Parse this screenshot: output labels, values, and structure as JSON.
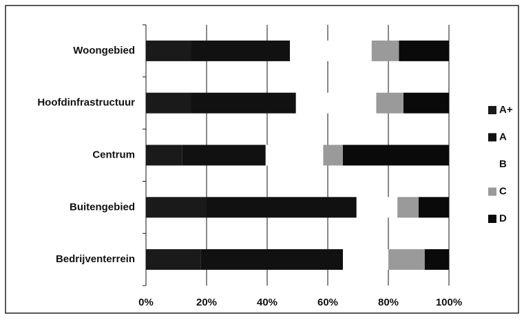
{
  "chart_data": {
    "type": "bar",
    "orientation": "horizontal",
    "stacked": true,
    "categories": [
      "Woongebied",
      "Hoofdinfrastructuur",
      "Centrum",
      "Buitengebied",
      "Bedrijventerrein"
    ],
    "series": [
      {
        "name": "A+",
        "color": "#1a1a1a",
        "values": [
          15,
          15,
          12,
          20,
          18
        ]
      },
      {
        "name": "A",
        "color": "#111111",
        "values": [
          32.5,
          34.5,
          27.5,
          49.5,
          47
        ]
      },
      {
        "name": "B",
        "color": "#ffffff",
        "values": [
          27,
          26.5,
          19,
          13.5,
          15
        ]
      },
      {
        "name": "C",
        "color": "#9a9a9a",
        "values": [
          9,
          9,
          6.5,
          7,
          12
        ]
      },
      {
        "name": "D",
        "color": "#0a0a0a",
        "values": [
          16.5,
          15,
          35,
          10,
          8
        ]
      }
    ],
    "xlim": [
      0,
      100
    ],
    "xticks": [
      {
        "value": 0,
        "label": "0%"
      },
      {
        "value": 20,
        "label": "20%"
      },
      {
        "value": 40,
        "label": "40%"
      },
      {
        "value": 60,
        "label": "60%"
      },
      {
        "value": 80,
        "label": "80%"
      },
      {
        "value": 100,
        "label": "100%"
      }
    ],
    "grid": true,
    "legend": "right"
  }
}
